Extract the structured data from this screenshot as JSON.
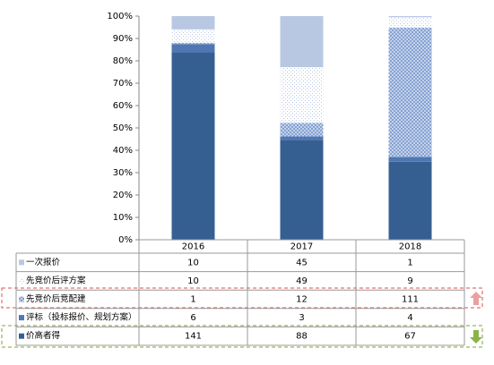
{
  "chart_data": {
    "type": "bar",
    "stacked": "percent",
    "categories": [
      "2016",
      "2017",
      "2018"
    ],
    "series": [
      {
        "name": "一次报价",
        "color": "#b9c8e2",
        "values": [
          10,
          45,
          1
        ]
      },
      {
        "name": "先竞价后评方案",
        "color": "#b9c8e2",
        "pattern": "dots",
        "values": [
          10,
          49,
          9
        ]
      },
      {
        "name": "先竞价后竞配建",
        "color": "#7f9dd0",
        "pattern": "crosshatch",
        "values": [
          1,
          12,
          111
        ]
      },
      {
        "name": "评标（投标报价、规划方案）",
        "color": "#4f77b3",
        "values": [
          6,
          3,
          4
        ]
      },
      {
        "name": "价高者得",
        "color": "#365f91",
        "values": [
          141,
          88,
          67
        ]
      }
    ],
    "ylim": [
      0,
      100
    ],
    "yticks": [
      {
        "value": 0,
        "label": "0%"
      },
      {
        "value": 10,
        "label": "10%"
      },
      {
        "value": 20,
        "label": "20%"
      },
      {
        "value": 30,
        "label": "30%"
      },
      {
        "value": 40,
        "label": "40%"
      },
      {
        "value": 50,
        "label": "50%"
      },
      {
        "value": 60,
        "label": "60%"
      },
      {
        "value": 70,
        "label": "70%"
      },
      {
        "value": 80,
        "label": "80%"
      },
      {
        "value": 90,
        "label": "90%"
      },
      {
        "value": 100,
        "label": "100%"
      }
    ]
  }
}
